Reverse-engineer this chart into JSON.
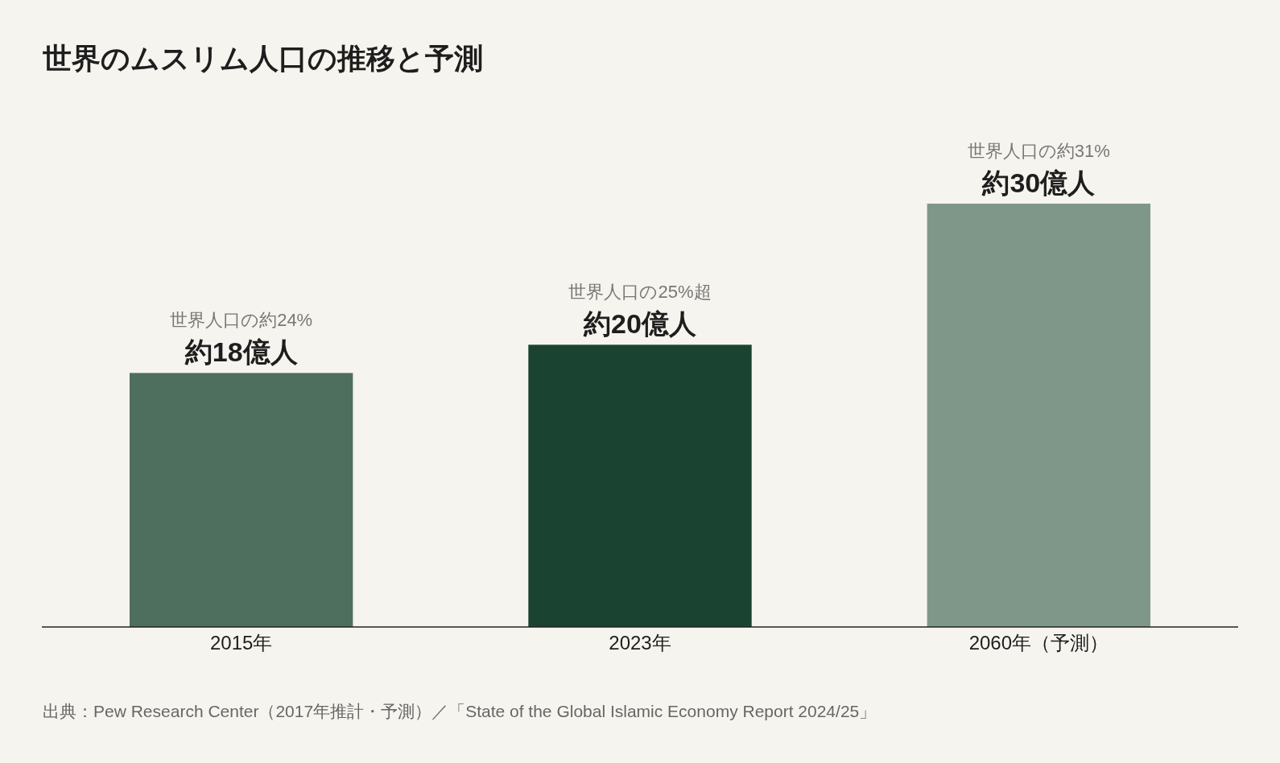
{
  "chart_data": {
    "type": "bar",
    "title": "世界のムスリム人口の推移と予測",
    "categories": [
      "2015年",
      "2023年",
      "2060年（予測）"
    ],
    "values": [
      18,
      20,
      30
    ],
    "colors": [
      "#4f6f5e",
      "#1b4332",
      "#7f9789"
    ],
    "value_labels": [
      "約18億人",
      "約20億人",
      "約30億人"
    ],
    "annotations": [
      {
        "text": "世界人口の約24%",
        "x": "2015年",
        "y": 18
      },
      {
        "text": "世界人口の25%超",
        "x": "2023年",
        "y": 20
      },
      {
        "text": "世界人口の約31%",
        "x": "2060年（予測）",
        "y": 30
      },
      "出典：Pew Research Center（2017年推計・予測）／「State of the Global Islamic Economy Report 2024/25」"
    ]
  }
}
